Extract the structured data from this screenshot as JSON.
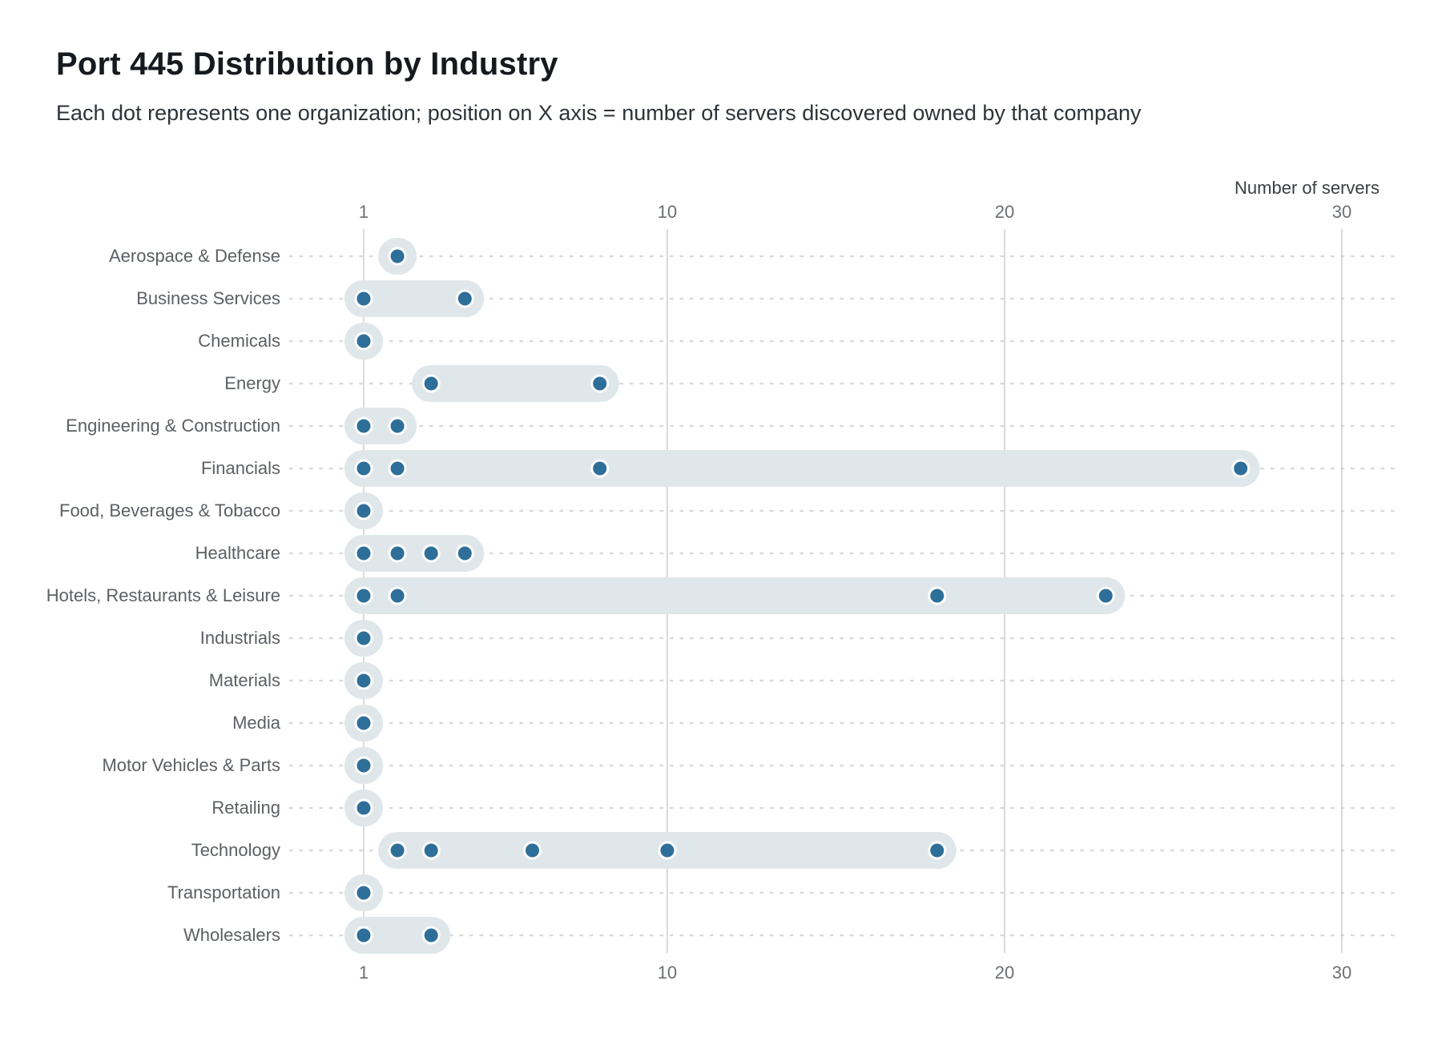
{
  "header": {
    "title": "Port 445 Distribution by Industry",
    "subtitle": "Each dot represents one organization; position on X axis = number of servers discovered owned by that company"
  },
  "chart_data": {
    "type": "scatter",
    "variant": "horizontal-dot-strip-plot",
    "title": "Port 445 Distribution by Industry",
    "subtitle": "Each dot represents one organization; position on X axis = number of servers discovered owned by that company",
    "xlabel": "Number of servers",
    "ylabel": "",
    "xlim": [
      1,
      30
    ],
    "x_ticks": [
      1,
      10,
      20,
      30
    ],
    "x_tick_labels_positions": "top and bottom",
    "grid": "vertical gridlines at ticks, dotted horizontal leader per row",
    "legend": "none",
    "rows": [
      {
        "industry": "Aerospace & Defense",
        "values": [
          2
        ]
      },
      {
        "industry": "Business Services",
        "values": [
          1,
          4
        ]
      },
      {
        "industry": "Chemicals",
        "values": [
          1
        ]
      },
      {
        "industry": "Energy",
        "values": [
          3,
          8
        ]
      },
      {
        "industry": "Engineering & Construction",
        "values": [
          1,
          2
        ]
      },
      {
        "industry": "Financials",
        "values": [
          1,
          2,
          8,
          27
        ]
      },
      {
        "industry": "Food, Beverages & Tobacco",
        "values": [
          1
        ]
      },
      {
        "industry": "Healthcare",
        "values": [
          1,
          2,
          3,
          4
        ]
      },
      {
        "industry": "Hotels, Restaurants & Leisure",
        "values": [
          1,
          2,
          18,
          23
        ]
      },
      {
        "industry": "Industrials",
        "values": [
          1
        ]
      },
      {
        "industry": "Materials",
        "values": [
          1
        ]
      },
      {
        "industry": "Media",
        "values": [
          1
        ]
      },
      {
        "industry": "Motor Vehicles & Parts",
        "values": [
          1
        ]
      },
      {
        "industry": "Retailing",
        "values": [
          1
        ]
      },
      {
        "industry": "Technology",
        "values": [
          2,
          3,
          6,
          10,
          18
        ]
      },
      {
        "industry": "Transportation",
        "values": [
          1
        ]
      },
      {
        "industry": "Wholesalers",
        "values": [
          1,
          3
        ]
      }
    ]
  },
  "colors": {
    "dot_fill": "#2e6f99",
    "dot_ring": "#ffffff",
    "range_pill": "#e0e7ea",
    "gridline": "#cfcfcf",
    "leader_line": "#d9d9d9",
    "tick_text": "#6b6f74",
    "row_label_text": "#5c6064",
    "title_text": "#16191d",
    "subtitle_text": "#2e3338"
  }
}
